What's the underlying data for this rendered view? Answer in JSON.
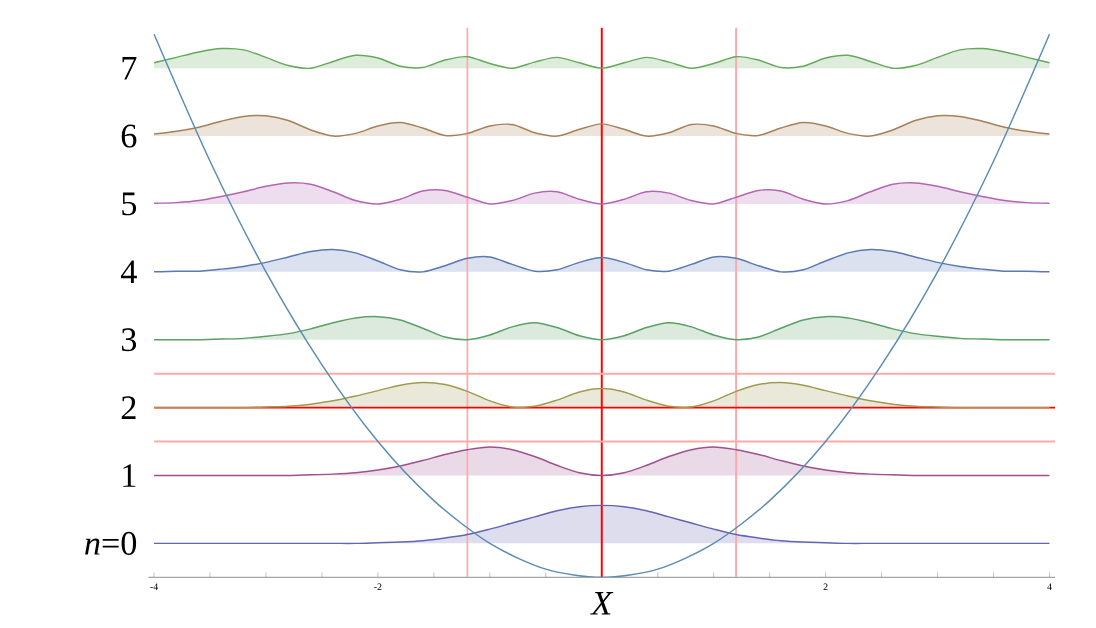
{
  "chart_data": {
    "type": "line",
    "xlabel": "X",
    "x": [
      -4,
      -3.8,
      -3.6,
      -3.4,
      -3.2,
      -3,
      -2.8,
      -2.6,
      -2.4,
      -2.2,
      -2,
      -1.8,
      -1.6,
      -1.4,
      -1.2,
      -1,
      -0.8,
      -0.6,
      -0.4,
      -0.2,
      0,
      0.2,
      0.4,
      0.6,
      0.8,
      1,
      1.2,
      1.4,
      1.6,
      1.8,
      2,
      2.2,
      2.4,
      2.6,
      2.8,
      3,
      3.2,
      3.4,
      3.6,
      3.8,
      4
    ],
    "xlim": [
      -4.05,
      4.05
    ],
    "ylim": [
      -0.5,
      7.6
    ],
    "xticks": [
      -4,
      {
        "value": -3.5,
        "label": null
      },
      {
        "value": -3,
        "label": null
      },
      {
        "value": -2.5,
        "label": null
      },
      -2,
      {
        "value": -1.5,
        "label": null
      },
      {
        "value": -1,
        "label": null
      },
      {
        "value": -0.5,
        "label": null
      },
      {
        "value": 0,
        "label": null
      },
      {
        "value": 0.5,
        "label": null
      },
      {
        "value": 1,
        "label": null
      },
      {
        "value": 1.5,
        "label": null
      },
      2,
      {
        "value": 2.5,
        "label": null
      },
      {
        "value": 3,
        "label": null
      },
      {
        "value": 3.5,
        "label": null
      },
      4
    ],
    "yticks": [
      {
        "value": 0,
        "label": "*n*=0"
      },
      1,
      2,
      3,
      4,
      5,
      6,
      7
    ],
    "series": [
      {
        "color": "#6464b4",
        "values": [
          0,
          0,
          0,
          0,
          0,
          0,
          0,
          0,
          0,
          0,
          0.01,
          0.02,
          0.04,
          0.08,
          0.13,
          0.21,
          0.3,
          0.39,
          0.48,
          0.54,
          0.56,
          0.54,
          0.48,
          0.39,
          0.3,
          0.21,
          0.13,
          0.08,
          0.04,
          0.02,
          0.01,
          0,
          0,
          0,
          0,
          0,
          0,
          0,
          0,
          0,
          0
        ],
        "lower": [
          0,
          0,
          0,
          0,
          0,
          0,
          0,
          0,
          0,
          0,
          0,
          0,
          0,
          0,
          0,
          0,
          0,
          0,
          0,
          0,
          0,
          0,
          0,
          0,
          0,
          0,
          0,
          0,
          0,
          0,
          0,
          0,
          0,
          0,
          0,
          0,
          0,
          0,
          0,
          0,
          0
        ],
        "upper": [
          0,
          0,
          0,
          0,
          0,
          0,
          0,
          0,
          0,
          0,
          0.01,
          0.02,
          0.04,
          0.08,
          0.13,
          0.21,
          0.3,
          0.39,
          0.48,
          0.54,
          0.56,
          0.54,
          0.48,
          0.39,
          0.3,
          0.21,
          0.13,
          0.08,
          0.04,
          0.02,
          0.01,
          0,
          0,
          0,
          0,
          0,
          0,
          0,
          0,
          0,
          0
        ]
      },
      {
        "color": "#a0508c",
        "values": [
          1,
          1,
          1,
          1,
          1,
          1,
          1,
          1.01,
          1.02,
          1.04,
          1.08,
          1.14,
          1.22,
          1.31,
          1.38,
          1.42,
          1.38,
          1.28,
          1.15,
          1.04,
          1.0,
          1.04,
          1.15,
          1.28,
          1.38,
          1.42,
          1.38,
          1.31,
          1.22,
          1.14,
          1.08,
          1.04,
          1.02,
          1.01,
          1,
          1,
          1,
          1,
          1,
          1,
          1
        ],
        "lower": [
          1,
          1,
          1,
          1,
          1,
          1,
          1,
          1,
          1,
          1,
          1,
          1,
          1,
          1,
          1,
          1,
          1,
          1,
          1,
          1,
          1,
          1,
          1,
          1,
          1,
          1,
          1,
          1,
          1,
          1,
          1,
          1,
          1,
          1,
          1,
          1,
          1,
          1,
          1,
          1,
          1
        ],
        "upper": [
          1,
          1,
          1,
          1,
          1,
          1,
          1,
          1.01,
          1.02,
          1.04,
          1.08,
          1.14,
          1.22,
          1.31,
          1.38,
          1.42,
          1.38,
          1.28,
          1.15,
          1.04,
          1.0,
          1.04,
          1.15,
          1.28,
          1.38,
          1.42,
          1.38,
          1.31,
          1.22,
          1.14,
          1.08,
          1.04,
          1.02,
          1.01,
          1,
          1,
          1,
          1,
          1,
          1,
          1
        ]
      },
      {
        "color": "#a09a50",
        "values": [
          2,
          2,
          2,
          2,
          2,
          2.01,
          2.02,
          2.05,
          2.1,
          2.17,
          2.25,
          2.33,
          2.37,
          2.34,
          2.24,
          2.1,
          2.01,
          2.02,
          2.11,
          2.23,
          2.28,
          2.23,
          2.11,
          2.02,
          2.01,
          2.1,
          2.24,
          2.34,
          2.37,
          2.33,
          2.25,
          2.17,
          2.1,
          2.05,
          2.02,
          2.01,
          2,
          2,
          2,
          2,
          2
        ],
        "lower": [
          2,
          2,
          2,
          2,
          2,
          2,
          2,
          2,
          2,
          2,
          2,
          2,
          2,
          2,
          2,
          2,
          2,
          2,
          2,
          2,
          2,
          2,
          2,
          2,
          2,
          2,
          2,
          2,
          2,
          2,
          2,
          2,
          2,
          2,
          2,
          2,
          2,
          2,
          2,
          2,
          2
        ],
        "upper": [
          2,
          2,
          2,
          2,
          2,
          2.01,
          2.02,
          2.05,
          2.1,
          2.17,
          2.25,
          2.33,
          2.37,
          2.34,
          2.24,
          2.1,
          2.01,
          2.02,
          2.11,
          2.23,
          2.28,
          2.23,
          2.11,
          2.02,
          2.01,
          2.1,
          2.24,
          2.34,
          2.37,
          2.33,
          2.25,
          2.17,
          2.1,
          2.05,
          2.02,
          2.01,
          2,
          2,
          2,
          2,
          2
        ]
      },
      {
        "color": "#5aa064",
        "values": [
          3,
          3,
          3,
          3.01,
          3.02,
          3.05,
          3.09,
          3.16,
          3.25,
          3.32,
          3.34,
          3.29,
          3.17,
          3.04,
          3.0,
          3.07,
          3.19,
          3.25,
          3.18,
          3.06,
          3.0,
          3.06,
          3.18,
          3.25,
          3.19,
          3.07,
          3.0,
          3.04,
          3.17,
          3.29,
          3.34,
          3.32,
          3.25,
          3.16,
          3.09,
          3.05,
          3.02,
          3.01,
          3,
          3,
          3
        ],
        "lower": [
          3,
          3,
          3,
          3,
          3,
          3,
          3,
          3,
          3,
          3,
          3,
          3,
          3,
          3,
          3,
          3,
          3,
          3,
          3,
          3,
          3,
          3,
          3,
          3,
          3,
          3,
          3,
          3,
          3,
          3,
          3,
          3,
          3,
          3,
          3,
          3,
          3,
          3,
          3,
          3,
          3
        ],
        "upper": [
          3,
          3,
          3,
          3.01,
          3.02,
          3.05,
          3.09,
          3.16,
          3.25,
          3.32,
          3.34,
          3.29,
          3.17,
          3.04,
          3.0,
          3.07,
          3.19,
          3.25,
          3.18,
          3.06,
          3.0,
          3.06,
          3.18,
          3.25,
          3.19,
          3.07,
          3.0,
          3.04,
          3.17,
          3.29,
          3.34,
          3.32,
          3.25,
          3.16,
          3.09,
          3.05,
          3.02,
          3.01,
          3,
          3,
          3
        ]
      },
      {
        "color": "#5a78b4",
        "values": [
          4.0,
          4.01,
          4.01,
          4.04,
          4.08,
          4.14,
          4.22,
          4.3,
          4.33,
          4.28,
          4.16,
          4.03,
          4.0,
          4.09,
          4.2,
          4.22,
          4.11,
          4.01,
          4.03,
          4.14,
          4.21,
          4.14,
          4.03,
          4.01,
          4.11,
          4.22,
          4.2,
          4.09,
          4.0,
          4.03,
          4.16,
          4.28,
          4.33,
          4.3,
          4.22,
          4.14,
          4.08,
          4.04,
          4.01,
          4.01,
          4.0
        ],
        "lower": [
          4,
          4,
          4,
          4,
          4,
          4,
          4,
          4,
          4,
          4,
          4,
          4,
          4,
          4,
          4,
          4,
          4,
          4,
          4,
          4,
          4,
          4,
          4,
          4,
          4,
          4,
          4,
          4,
          4,
          4,
          4,
          4,
          4,
          4,
          4,
          4,
          4,
          4,
          4,
          4,
          4
        ],
        "upper": [
          4.0,
          4.01,
          4.01,
          4.04,
          4.08,
          4.14,
          4.22,
          4.3,
          4.33,
          4.28,
          4.16,
          4.03,
          4.0,
          4.09,
          4.2,
          4.22,
          4.11,
          4.01,
          4.03,
          4.14,
          4.21,
          4.14,
          4.03,
          4.01,
          4.11,
          4.22,
          4.2,
          4.09,
          4.0,
          4.03,
          4.16,
          4.28,
          4.33,
          4.3,
          4.22,
          4.14,
          4.08,
          4.04,
          4.01,
          4.01,
          4.0
        ]
      },
      {
        "color": "#b464b4",
        "values": [
          5.01,
          5.02,
          5.05,
          5.11,
          5.18,
          5.26,
          5.31,
          5.29,
          5.18,
          5.05,
          5.0,
          5.07,
          5.19,
          5.2,
          5.1,
          5.0,
          5.05,
          5.16,
          5.18,
          5.07,
          5.0,
          5.07,
          5.18,
          5.16,
          5.05,
          5.0,
          5.1,
          5.2,
          5.19,
          5.07,
          5.0,
          5.05,
          5.18,
          5.29,
          5.31,
          5.26,
          5.18,
          5.11,
          5.05,
          5.02,
          5.01
        ],
        "lower": [
          5,
          5,
          5,
          5,
          5,
          5,
          5,
          5,
          5,
          5,
          5,
          5,
          5,
          5,
          5,
          5,
          5,
          5,
          5,
          5,
          5,
          5,
          5,
          5,
          5,
          5,
          5,
          5,
          5,
          5,
          5,
          5,
          5,
          5,
          5,
          5,
          5,
          5,
          5,
          5,
          5
        ],
        "upper": [
          5.01,
          5.02,
          5.05,
          5.11,
          5.18,
          5.26,
          5.31,
          5.29,
          5.18,
          5.05,
          5.0,
          5.07,
          5.19,
          5.2,
          5.1,
          5.0,
          5.05,
          5.16,
          5.18,
          5.07,
          5.0,
          5.07,
          5.18,
          5.16,
          5.05,
          5.0,
          5.1,
          5.2,
          5.19,
          5.07,
          5.0,
          5.05,
          5.18,
          5.29,
          5.31,
          5.26,
          5.18,
          5.11,
          5.05,
          5.02,
          5.01
        ]
      },
      {
        "color": "#a88058",
        "values": [
          6.03,
          6.07,
          6.13,
          6.22,
          6.29,
          6.3,
          6.23,
          6.09,
          6.0,
          6.04,
          6.15,
          6.2,
          6.12,
          6.01,
          6.04,
          6.15,
          6.17,
          6.05,
          6.0,
          6.1,
          6.18,
          6.1,
          6.0,
          6.05,
          6.17,
          6.15,
          6.04,
          6.01,
          6.12,
          6.2,
          6.15,
          6.04,
          6.0,
          6.09,
          6.23,
          6.3,
          6.29,
          6.22,
          6.13,
          6.07,
          6.03
        ],
        "lower": [
          6,
          6,
          6,
          6,
          6,
          6,
          6,
          6,
          6,
          6,
          6,
          6,
          6,
          6,
          6,
          6,
          6,
          6,
          6,
          6,
          6,
          6,
          6,
          6,
          6,
          6,
          6,
          6,
          6,
          6,
          6,
          6,
          6,
          6,
          6,
          6,
          6,
          6,
          6,
          6,
          6
        ],
        "upper": [
          6.03,
          6.07,
          6.13,
          6.22,
          6.29,
          6.3,
          6.23,
          6.09,
          6.0,
          6.04,
          6.15,
          6.2,
          6.12,
          6.01,
          6.04,
          6.15,
          6.17,
          6.05,
          6.0,
          6.1,
          6.18,
          6.1,
          6.0,
          6.05,
          6.17,
          6.15,
          6.04,
          6.01,
          6.12,
          6.2,
          6.15,
          6.04,
          6.0,
          6.09,
          6.23,
          6.3,
          6.29,
          6.22,
          6.13,
          6.07,
          6.03
        ]
      },
      {
        "color": "#64aa5a",
        "values": [
          7.08,
          7.16,
          7.24,
          7.29,
          7.27,
          7.16,
          7.04,
          7.0,
          7.1,
          7.19,
          7.15,
          7.03,
          7.01,
          7.12,
          7.17,
          7.07,
          7.0,
          7.09,
          7.16,
          7.08,
          7.0,
          7.08,
          7.16,
          7.09,
          7.0,
          7.07,
          7.17,
          7.12,
          7.01,
          7.03,
          7.15,
          7.19,
          7.1,
          7.0,
          7.04,
          7.16,
          7.27,
          7.29,
          7.24,
          7.16,
          7.08
        ],
        "lower": [
          7,
          7,
          7,
          7,
          7,
          7,
          7,
          7,
          7,
          7,
          7,
          7,
          7,
          7,
          7,
          7,
          7,
          7,
          7,
          7,
          7,
          7,
          7,
          7,
          7,
          7,
          7,
          7,
          7,
          7,
          7,
          7,
          7,
          7,
          7,
          7,
          7,
          7,
          7,
          7,
          7
        ],
        "upper": [
          7.08,
          7.16,
          7.24,
          7.29,
          7.27,
          7.16,
          7.04,
          7.0,
          7.1,
          7.19,
          7.15,
          7.03,
          7.01,
          7.12,
          7.17,
          7.07,
          7.0,
          7.09,
          7.16,
          7.08,
          7.0,
          7.08,
          7.16,
          7.09,
          7.0,
          7.07,
          7.17,
          7.12,
          7.01,
          7.03,
          7.15,
          7.19,
          7.1,
          7.0,
          7.04,
          7.16,
          7.27,
          7.29,
          7.24,
          7.16,
          7.08
        ]
      },
      {
        "color": "#5a8cb4",
        "x": [
          -4,
          -3.5,
          -3,
          -2.5,
          -2,
          -1.5,
          -1,
          -0.5,
          0,
          0.5,
          1,
          1.5,
          2,
          2.5,
          3,
          3.5,
          4
        ],
        "values": [
          7.5,
          5.63,
          4,
          2.63,
          1.5,
          0.63,
          0,
          -0.38,
          -0.5,
          -0.38,
          0,
          0.63,
          1.5,
          2.63,
          4,
          5.63,
          7.5
        ]
      }
    ],
    "ref_lines": [
      {
        "axis": "x",
        "value": 0,
        "color": "#ff0000"
      },
      {
        "axis": "x",
        "value": -1.2,
        "color": "#ffaaaa"
      },
      {
        "axis": "x",
        "value": 1.2,
        "color": "#ffaaaa"
      },
      {
        "axis": "y",
        "value": 2,
        "color": "#ff0000"
      },
      {
        "axis": "y",
        "value": 1.5,
        "color": "#ffaaaa"
      },
      {
        "axis": "y",
        "value": 2.5,
        "color": "#ffaaaa"
      }
    ]
  }
}
